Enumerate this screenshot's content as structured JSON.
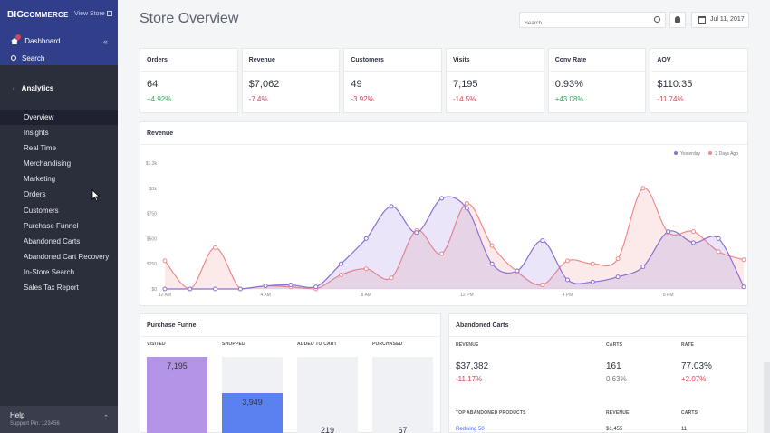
{
  "sidebar": {
    "logo": {
      "prefix": "BIG",
      "rest": "COMMERCE"
    },
    "view_store": "View Store",
    "dashboard": "Dashboard",
    "search": "Search",
    "section": "Analytics",
    "items": [
      {
        "label": "Overview",
        "active": true
      },
      {
        "label": "Insights"
      },
      {
        "label": "Real Time"
      },
      {
        "label": "Merchandising"
      },
      {
        "label": "Marketing"
      },
      {
        "label": "Orders"
      },
      {
        "label": "Customers"
      },
      {
        "label": "Purchase Funnel"
      },
      {
        "label": "Abandoned Carts"
      },
      {
        "label": "Abandoned Cart Recovery"
      },
      {
        "label": "In-Store Search"
      },
      {
        "label": "Sales Tax Report"
      }
    ],
    "help": {
      "title": "Help",
      "support_pin": "Support Pin: 123456"
    }
  },
  "header": {
    "title": "Store Overview",
    "search_placeholder": "Search",
    "date": "Jul 11, 2017"
  },
  "kpis": [
    {
      "label": "Orders",
      "value": "64",
      "change": "+4.92%",
      "trend": "pos"
    },
    {
      "label": "Revenue",
      "value": "$7,062",
      "change": "-7.4%",
      "trend": "neg"
    },
    {
      "label": "Customers",
      "value": "49",
      "change": "-3.92%",
      "trend": "neg"
    },
    {
      "label": "Visits",
      "value": "7,195",
      "change": "-14.5%",
      "trend": "neg"
    },
    {
      "label": "Conv Rate",
      "value": "0.93%",
      "change": "+43.08%",
      "trend": "pos"
    },
    {
      "label": "AOV",
      "value": "$110.35",
      "change": "-11.74%",
      "trend": "neg"
    }
  ],
  "revenue_card": {
    "title": "Revenue"
  },
  "chart_data": {
    "type": "area",
    "x": [
      "12 AM",
      "1",
      "2",
      "3",
      "4 AM",
      "5",
      "6",
      "7",
      "8 AM",
      "9",
      "10",
      "11",
      "12 PM",
      "1",
      "2",
      "3",
      "4 PM",
      "5",
      "6",
      "7",
      "8 PM",
      "9",
      "10",
      "11"
    ],
    "x_tick_labels": [
      "12 AM",
      "4 AM",
      "8 AM",
      "12 PM",
      "4 PM",
      "8 PM"
    ],
    "y_tick_labels": [
      "$0",
      "$250",
      "$500",
      "$750",
      "$1k",
      "$1.3k"
    ],
    "ylim": [
      0,
      1250
    ],
    "series": [
      {
        "name": "Yesterday",
        "color": "#8b6fd6",
        "values": [
          0,
          0,
          0,
          0,
          30,
          40,
          20,
          250,
          500,
          820,
          560,
          900,
          800,
          250,
          180,
          480,
          90,
          70,
          120,
          220,
          570,
          460,
          500,
          20
        ]
      },
      {
        "name": "2 Days Ago",
        "color": "#f08a8a",
        "values": [
          280,
          0,
          410,
          0,
          30,
          20,
          0,
          140,
          200,
          110,
          580,
          350,
          850,
          430,
          170,
          40,
          280,
          250,
          300,
          1000,
          560,
          570,
          370,
          290
        ]
      }
    ],
    "legend_position": "top-right",
    "grid": false
  },
  "funnel": {
    "title": "Purchase Funnel",
    "steps": [
      {
        "label": "VISITED",
        "value": "7,195",
        "fraction": 1.0,
        "color": "#b394e6"
      },
      {
        "label": "SHOPPED",
        "value": "3,949",
        "fraction": 0.55,
        "color": "#5b80f0"
      },
      {
        "label": "ADDED TO CART",
        "value": "219",
        "fraction": 0.03,
        "color": "#5b80f0"
      },
      {
        "label": "PURCHASED",
        "value": "67",
        "fraction": 0.01,
        "color": "#5b80f0"
      }
    ]
  },
  "abandoned": {
    "title": "Abandoned Carts",
    "headers": {
      "revenue": "REVENUE",
      "carts": "CARTS",
      "rate": "RATE"
    },
    "revenue": {
      "value": "$37,382",
      "change": "-11.17%"
    },
    "carts": {
      "value": "161",
      "sub": "0.63%"
    },
    "rate": {
      "value": "77.03%",
      "change": "+2.07%"
    },
    "products_headers": {
      "product": "TOP ABANDONED PRODUCTS",
      "revenue": "REVENUE",
      "carts": "CARTS"
    },
    "products": [
      {
        "name": "Redwing 50",
        "revenue": "$1,455",
        "carts": "11"
      }
    ]
  }
}
